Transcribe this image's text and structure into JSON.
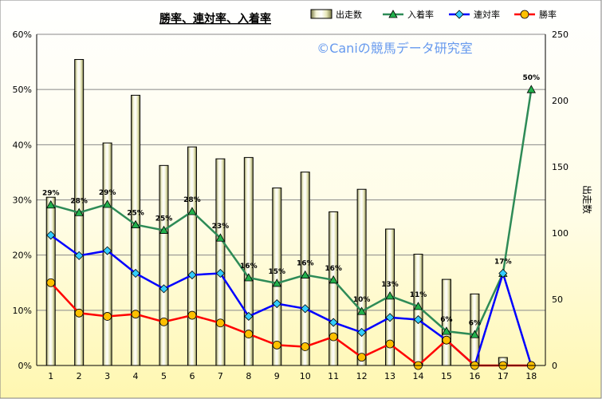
{
  "chart_data": {
    "type": "bar+line",
    "title": "勝率、連対率、入着率",
    "watermark": "©Caniの競馬データ研究室",
    "categories": [
      "1",
      "2",
      "3",
      "4",
      "5",
      "6",
      "7",
      "8",
      "9",
      "10",
      "11",
      "12",
      "13",
      "14",
      "15",
      "16",
      "17",
      "18"
    ],
    "left_axis": {
      "ticks": [
        "0%",
        "10%",
        "20%",
        "30%",
        "40%",
        "50%",
        "60%"
      ],
      "range": [
        0,
        60
      ]
    },
    "right_axis": {
      "ticks": [
        "0",
        "50",
        "100",
        "150",
        "200",
        "250"
      ],
      "range": [
        0,
        250
      ],
      "label": "出走数"
    },
    "bars": {
      "name": "出走数",
      "axis": "right",
      "values": [
        127,
        231,
        168,
        204,
        151,
        165,
        156,
        157,
        134,
        146,
        116,
        133,
        103,
        84,
        65,
        54,
        6,
        0
      ]
    },
    "series": [
      {
        "name": "入着率",
        "axis": "left",
        "values": [
          29.1,
          27.7,
          29.2,
          25.5,
          24.5,
          27.9,
          23.1,
          15.9,
          14.9,
          16.4,
          15.5,
          9.8,
          12.6,
          10.7,
          6.2,
          5.6,
          16.7,
          50.0
        ],
        "labels": [
          "29%",
          "28%",
          "29%",
          "25%",
          "25%",
          "28%",
          "23%",
          "16%",
          "15%",
          "16%",
          "16%",
          "10%",
          "13%",
          "11%",
          "6%",
          "6%",
          "17%",
          "50%"
        ]
      },
      {
        "name": "連対率",
        "axis": "left",
        "values": [
          23.6,
          19.9,
          20.8,
          16.7,
          13.9,
          16.4,
          16.7,
          8.9,
          11.2,
          10.3,
          7.8,
          6.0,
          8.7,
          8.3,
          4.6,
          0,
          16.7,
          0
        ]
      },
      {
        "name": "勝率",
        "axis": "left",
        "values": [
          15.0,
          9.5,
          8.9,
          9.3,
          7.9,
          9.1,
          7.7,
          5.7,
          3.7,
          3.4,
          5.2,
          1.5,
          3.9,
          0,
          4.6,
          0,
          0,
          0
        ]
      }
    ],
    "legend": [
      "出走数",
      "入着率",
      "連対率",
      "勝率"
    ],
    "legend_position": "top"
  },
  "colors": {
    "bar_fill_light": "#fbfbe8",
    "bar_fill_dark": "#8a8a55",
    "placing": "#2e8b57",
    "placing_marker": "#22b14c",
    "rentai": "#0000ff",
    "rentai_marker": "#33ccff",
    "win": "#ff0000",
    "win_marker": "#ffc000",
    "watermark": "#6699ee"
  }
}
